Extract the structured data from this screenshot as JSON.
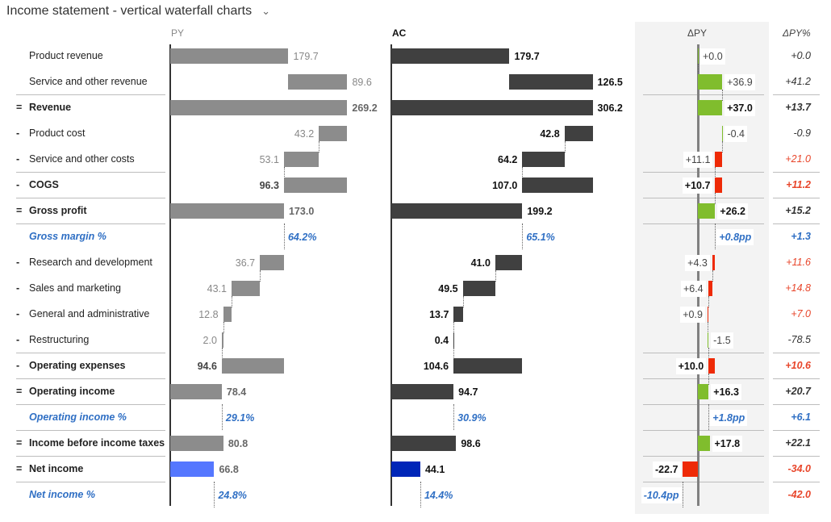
{
  "title": "Income statement - vertical waterfall charts",
  "headers": {
    "py": "PY",
    "ac": "AC",
    "dpy": "ΔPY",
    "dpyp": "ΔPY%"
  },
  "colors": {
    "py_bar": "#8c8c8c",
    "ac_bar": "#404040",
    "py_net": "#5577ff",
    "ac_net": "#0026b8",
    "good": "#80bd2d",
    "bad": "#ee2a07",
    "pct_text": "#2f6fc4",
    "bad_text": "#e8462b"
  },
  "chart_data": {
    "type": "waterfall",
    "rows": [
      {
        "prefix": "",
        "label": "Product revenue",
        "kind": "pos",
        "py": 179.7,
        "ac": 179.7,
        "d": 0.0,
        "d_label": "+0.0",
        "dp": "+0.0",
        "dp_tone": "neutral"
      },
      {
        "prefix": "",
        "label": "Service and other revenue",
        "kind": "pos",
        "py": 89.6,
        "ac": 126.5,
        "d": 36.9,
        "d_label": "+36.9",
        "dp": "+41.2",
        "dp_tone": "neutral"
      },
      {
        "prefix": "=",
        "label": "Revenue",
        "kind": "total",
        "py": 269.2,
        "ac": 306.2,
        "d": 37.0,
        "d_label": "+37.0",
        "dp": "+13.7",
        "dp_tone": "neutral"
      },
      {
        "prefix": "-",
        "label": "Product cost",
        "kind": "neg",
        "py": 43.2,
        "ac": 42.8,
        "d": -0.4,
        "d_label": "-0.4",
        "dp": "-0.9",
        "dp_tone": "neutral"
      },
      {
        "prefix": "-",
        "label": "Service and other costs",
        "kind": "neg",
        "py": 53.1,
        "ac": 64.2,
        "d": 11.1,
        "d_label": "+11.1",
        "dp": "+21.0",
        "dp_tone": "bad"
      },
      {
        "prefix": "-",
        "label": "COGS",
        "kind": "subneg",
        "py": 96.3,
        "ac": 107.0,
        "d": 10.7,
        "d_label": "+10.7",
        "dp": "+11.2",
        "dp_tone": "bad"
      },
      {
        "prefix": "=",
        "label": "Gross profit",
        "kind": "total",
        "py": 173.0,
        "ac": 199.2,
        "d": 26.2,
        "d_label": "+26.2",
        "dp": "+15.2",
        "dp_tone": "neutral"
      },
      {
        "prefix": "",
        "label": "Gross margin %",
        "kind": "pct",
        "py_label": "64.2%",
        "ac_label": "65.1%",
        "d_label": "+0.8pp",
        "dp": "+1.3",
        "dp_tone": "pct"
      },
      {
        "prefix": "-",
        "label": "Research and development",
        "kind": "neg",
        "py": 36.7,
        "ac": 41.0,
        "d": 4.3,
        "d_label": "+4.3",
        "dp": "+11.6",
        "dp_tone": "bad"
      },
      {
        "prefix": "-",
        "label": "Sales and marketing",
        "kind": "neg",
        "py": 43.1,
        "ac": 49.5,
        "d": 6.4,
        "d_label": "+6.4",
        "dp": "+14.8",
        "dp_tone": "bad"
      },
      {
        "prefix": "-",
        "label": "General and administrative",
        "kind": "neg",
        "py": 12.8,
        "ac": 13.7,
        "d": 0.9,
        "d_label": "+0.9",
        "dp": "+7.0",
        "dp_tone": "bad"
      },
      {
        "prefix": "-",
        "label": "Restructuring",
        "kind": "neg",
        "py": 2.0,
        "ac": 0.4,
        "d": -1.5,
        "d_label": "-1.5",
        "dp": "-78.5",
        "dp_tone": "neutral"
      },
      {
        "prefix": "-",
        "label": "Operating expenses",
        "kind": "subneg",
        "py": 94.6,
        "ac": 104.6,
        "d": 10.0,
        "d_label": "+10.0",
        "dp": "+10.6",
        "dp_tone": "bad"
      },
      {
        "prefix": "=",
        "label": "Operating income",
        "kind": "total",
        "py": 78.4,
        "ac": 94.7,
        "d": 16.3,
        "d_label": "+16.3",
        "dp": "+20.7",
        "dp_tone": "neutral"
      },
      {
        "prefix": "",
        "label": "Operating income %",
        "kind": "pct",
        "py_label": "29.1%",
        "ac_label": "30.9%",
        "d_label": "+1.8pp",
        "dp": "+6.1",
        "dp_tone": "pct"
      },
      {
        "prefix": "=",
        "label": "Income before income taxes",
        "kind": "total",
        "py": 80.8,
        "ac": 98.6,
        "d": 17.8,
        "d_label": "+17.8",
        "dp": "+22.1",
        "dp_tone": "neutral"
      },
      {
        "prefix": "=",
        "label": "Net income",
        "kind": "total",
        "highlight": true,
        "py": 66.8,
        "ac": 44.1,
        "d": -22.7,
        "d_label": "-22.7",
        "dp": "-34.0",
        "dp_tone": "bad"
      },
      {
        "prefix": "",
        "label": "Net income %",
        "kind": "pct",
        "py_label": "24.8%",
        "ac_label": "14.4%",
        "d_label": "-10.4pp",
        "dp": "-42.0",
        "dp_tone": "bad"
      }
    ]
  }
}
